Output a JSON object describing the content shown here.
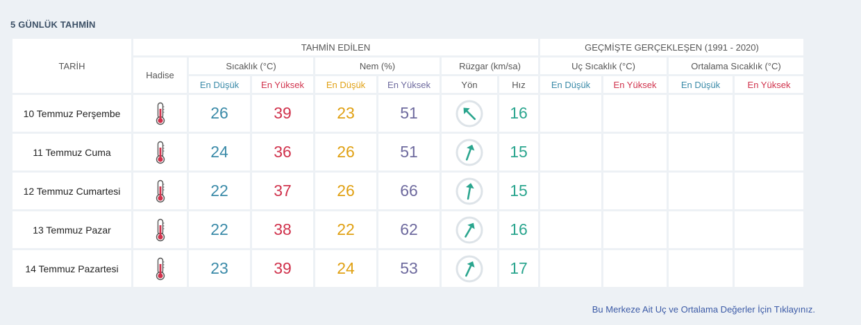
{
  "page_title": "5 GÜNLÜK TAHMİN",
  "header": {
    "tarih": "TARİH",
    "tahmin_edilen": "TAHMİN EDİLEN",
    "gecmiste": "GEÇMİŞTE GERÇEKLEŞEN (1991 - 2020)",
    "hadise": "Hadise",
    "sicaklik": "Sıcaklık (°C)",
    "nem": "Nem (%)",
    "ruzgar": "Rüzgar (km/sa)",
    "uc_sicaklik": "Uç Sıcaklık (°C)",
    "ortalama_sicaklik": "Ortalama Sıcaklık (°C)",
    "en_dusuk": "En Düşük",
    "en_yuksek": "En Yüksek",
    "yon": "Yön",
    "hiz": "Hız"
  },
  "colors": {
    "temp_low": "#3a8aa8",
    "temp_high": "#d0324c",
    "hum_low": "#e0a012",
    "hum_high": "#6e6a9e",
    "wind": "#2aa58e"
  },
  "rows": [
    {
      "date": "10 Temmuz Perşembe",
      "icon": "thermometer-hot-icon",
      "temp_min": "26",
      "temp_max": "39",
      "hum_min": "23",
      "hum_max": "51",
      "wind_dir_deg": 135,
      "wind_speed": "16"
    },
    {
      "date": "11 Temmuz Cuma",
      "icon": "thermometer-hot-icon",
      "temp_min": "24",
      "temp_max": "36",
      "hum_min": "26",
      "hum_max": "51",
      "wind_dir_deg": 200,
      "wind_speed": "15"
    },
    {
      "date": "12 Temmuz Cumartesi",
      "icon": "thermometer-hot-icon",
      "temp_min": "22",
      "temp_max": "37",
      "hum_min": "26",
      "hum_max": "66",
      "wind_dir_deg": 190,
      "wind_speed": "15"
    },
    {
      "date": "13 Temmuz Pazar",
      "icon": "thermometer-hot-icon",
      "temp_min": "22",
      "temp_max": "38",
      "hum_min": "22",
      "hum_max": "62",
      "wind_dir_deg": 210,
      "wind_speed": "16"
    },
    {
      "date": "14 Temmuz Pazartesi",
      "icon": "thermometer-hot-icon",
      "temp_min": "23",
      "temp_max": "39",
      "hum_min": "24",
      "hum_max": "53",
      "wind_dir_deg": 205,
      "wind_speed": "17"
    }
  ],
  "footer_link": "Bu Merkeze Ait Uç ve Ortalama Değerler İçin Tıklayınız."
}
